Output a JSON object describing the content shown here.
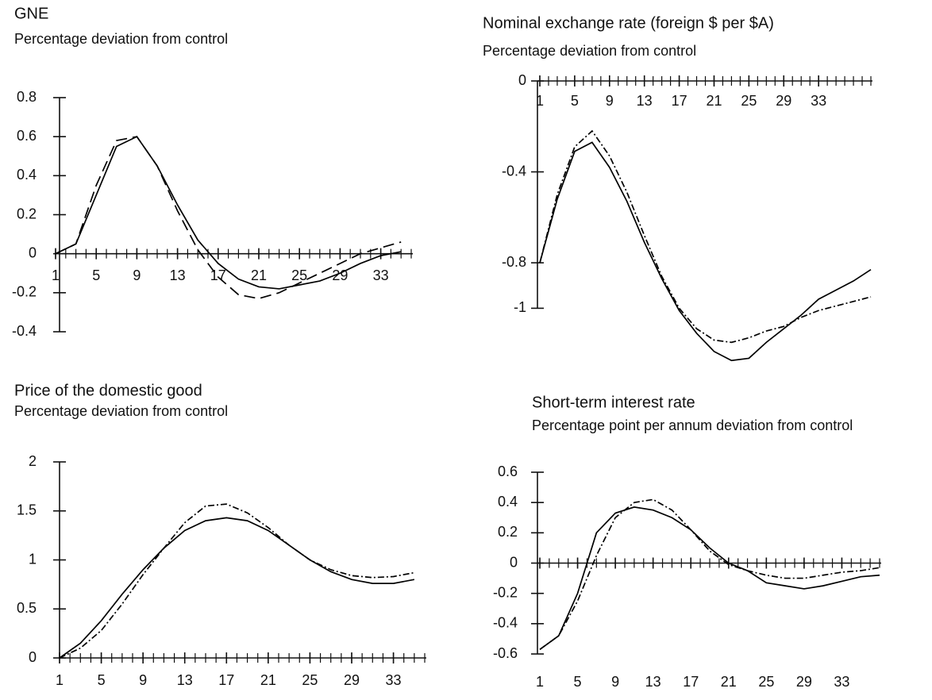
{
  "chart_data": [
    {
      "type": "line",
      "title": "GNE",
      "subtitle": "Percentage deviation from control",
      "x": [
        1,
        3,
        5,
        7,
        9,
        11,
        13,
        15,
        17,
        19,
        21,
        23,
        25,
        27,
        29,
        31,
        33,
        35
      ],
      "xlim": [
        1,
        36
      ],
      "xticks": [
        1,
        5,
        9,
        13,
        17,
        21,
        25,
        29,
        33
      ],
      "ylim": [
        -0.4,
        0.8
      ],
      "yticks": [
        0.8,
        0.6,
        0.4,
        0.2,
        0.0,
        -0.2,
        -0.4
      ],
      "series": [
        {
          "color": "#000000",
          "dash": "solid",
          "values": [
            0,
            0.05,
            0.3,
            0.55,
            0.6,
            0.45,
            0.25,
            0.07,
            -0.05,
            -0.13,
            -0.17,
            -0.18,
            -0.16,
            -0.14,
            -0.1,
            -0.05,
            -0.01,
            0.01
          ]
        },
        {
          "color": "#000000",
          "dash": "dashed",
          "values": [
            0,
            0.05,
            0.35,
            0.58,
            0.6,
            0.45,
            0.22,
            0.02,
            -0.12,
            -0.21,
            -0.23,
            -0.2,
            -0.15,
            -0.1,
            -0.05,
            0,
            0.03,
            0.06
          ]
        }
      ]
    },
    {
      "type": "line",
      "title": "Nominal exchange rate (foreign $ per $A)",
      "subtitle": "Percentage deviation from control",
      "x": [
        1,
        3,
        5,
        7,
        9,
        11,
        13,
        15,
        17,
        19,
        21,
        23,
        25,
        27,
        29,
        31,
        33,
        35,
        37,
        39
      ],
      "xlim": [
        1,
        39
      ],
      "xticks": [
        1,
        5,
        9,
        13,
        17,
        21,
        25,
        29,
        33
      ],
      "ylim": [
        -1.25,
        0.0
      ],
      "yticks": [
        0.0,
        -0.4,
        -0.8,
        -1.0
      ],
      "series": [
        {
          "color": "#000000",
          "dash": "solid",
          "values": [
            -0.8,
            -0.52,
            -0.31,
            -0.27,
            -0.38,
            -0.53,
            -0.71,
            -0.87,
            -1.01,
            -1.11,
            -1.19,
            -1.23,
            -1.22,
            -1.15,
            -1.09,
            -1.03,
            -0.96,
            -0.92,
            -0.88,
            -0.83
          ]
        },
        {
          "color": "#000000",
          "dash": "dashdot",
          "values": [
            -0.8,
            -0.5,
            -0.29,
            -0.22,
            -0.33,
            -0.49,
            -0.68,
            -0.86,
            -1.0,
            -1.09,
            -1.14,
            -1.15,
            -1.13,
            -1.1,
            -1.08,
            -1.04,
            -1.01,
            -0.99,
            -0.97,
            -0.95
          ]
        }
      ]
    },
    {
      "type": "line",
      "title": "Price of the domestic good",
      "subtitle": "Percentage deviation from control",
      "x": [
        1,
        3,
        5,
        7,
        9,
        11,
        13,
        15,
        17,
        19,
        21,
        23,
        25,
        27,
        29,
        31,
        33,
        35
      ],
      "xlim": [
        1,
        36
      ],
      "xticks": [
        1,
        5,
        9,
        13,
        17,
        21,
        25,
        29,
        33
      ],
      "ylim": [
        0.0,
        2.0
      ],
      "yticks": [
        2.0,
        1.5,
        1.0,
        0.5,
        0.0
      ],
      "series": [
        {
          "color": "#000000",
          "dash": "solid",
          "values": [
            0,
            0.15,
            0.38,
            0.65,
            0.9,
            1.12,
            1.3,
            1.4,
            1.43,
            1.4,
            1.3,
            1.15,
            1.0,
            0.88,
            0.8,
            0.76,
            0.76,
            0.8
          ]
        },
        {
          "color": "#000000",
          "dash": "dashdot",
          "values": [
            0,
            0.1,
            0.28,
            0.55,
            0.85,
            1.12,
            1.38,
            1.55,
            1.57,
            1.48,
            1.33,
            1.15,
            1.0,
            0.9,
            0.84,
            0.82,
            0.83,
            0.87
          ]
        }
      ]
    },
    {
      "type": "line",
      "title": "Short-term interest rate",
      "subtitle": "Percentage point per annum deviation from control",
      "x": [
        1,
        3,
        5,
        7,
        9,
        11,
        13,
        15,
        17,
        19,
        21,
        23,
        25,
        27,
        29,
        31,
        33,
        35,
        37
      ],
      "xlim": [
        1,
        37
      ],
      "xticks": [
        1,
        5,
        9,
        13,
        17,
        21,
        25,
        29,
        33
      ],
      "ylim": [
        -0.6,
        0.6
      ],
      "yticks": [
        0.6,
        0.4,
        0.2,
        0.0,
        -0.2,
        -0.4,
        -0.6
      ],
      "series": [
        {
          "color": "#000000",
          "dash": "solid",
          "values": [
            -0.57,
            -0.48,
            -0.2,
            0.2,
            0.33,
            0.37,
            0.35,
            0.3,
            0.22,
            0.1,
            0.0,
            -0.05,
            -0.13,
            -0.15,
            -0.17,
            -0.15,
            -0.12,
            -0.09,
            -0.08
          ]
        },
        {
          "color": "#000000",
          "dash": "dashdot",
          "values": [
            -0.57,
            -0.48,
            -0.25,
            0.05,
            0.3,
            0.4,
            0.42,
            0.35,
            0.22,
            0.08,
            -0.01,
            -0.05,
            -0.08,
            -0.1,
            -0.1,
            -0.08,
            -0.06,
            -0.05,
            -0.03
          ]
        }
      ]
    }
  ]
}
